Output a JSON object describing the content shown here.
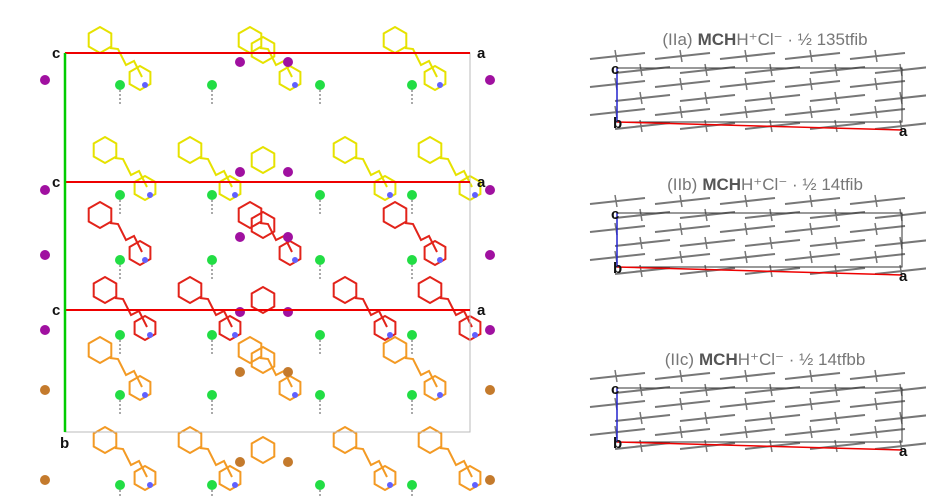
{
  "left": {
    "labels": {
      "c": [
        "c",
        "c",
        "c"
      ],
      "a": [
        "a",
        "a",
        "a"
      ],
      "b": "b"
    }
  },
  "panels": [
    {
      "id": "(IIa)",
      "bold": "MCH",
      "rest": "H⁺Cl⁻ · ½ 135tfib",
      "c": "c",
      "b": "b",
      "a": "a"
    },
    {
      "id": "(IIb)",
      "bold": "MCH",
      "rest": "H⁺Cl⁻ · ½ 14tfib",
      "c": "c",
      "b": "b",
      "a": "a"
    },
    {
      "id": "(IIc)",
      "bold": "MCH",
      "rest": "H⁺Cl⁻ · ½ 14tfbb",
      "c": "c",
      "b": "b",
      "a": "a"
    }
  ]
}
